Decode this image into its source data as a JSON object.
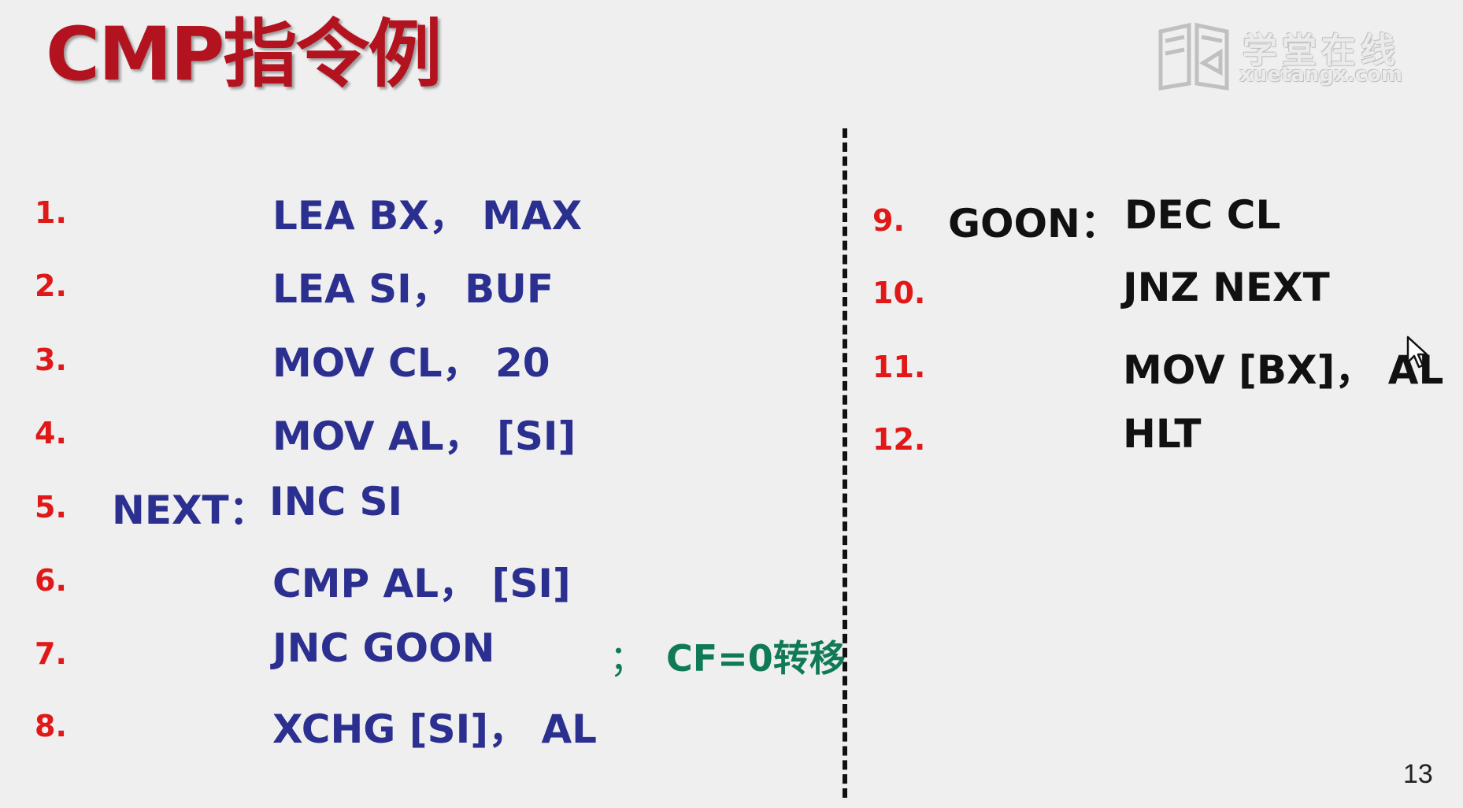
{
  "slide": {
    "title": "CMP指令例",
    "page_number": "13",
    "watermark": {
      "name": "学堂在线",
      "url": "xuetangx.com"
    }
  },
  "left_lines": [
    {
      "num": "1.",
      "label": "",
      "code": "LEA BX，  MAX"
    },
    {
      "num": "2.",
      "label": "",
      "code": "LEA SI，  BUF"
    },
    {
      "num": "3.",
      "label": "",
      "code": "MOV CL，  20"
    },
    {
      "num": "4.",
      "label": "",
      "code": "MOV AL，  [SI]"
    },
    {
      "num": "5.",
      "label": "NEXT：",
      "code": "INC   SI"
    },
    {
      "num": "6.",
      "label": "",
      "code": "CMP AL，  [SI]"
    },
    {
      "num": "7.",
      "label": "",
      "code": "JNC  GOON"
    },
    {
      "num": "8.",
      "label": "",
      "code": "XCHG  [SI]，  AL"
    }
  ],
  "line7_comment": {
    "semicolon": "；",
    "text": "CF=0转移"
  },
  "right_lines": [
    {
      "num": "9.",
      "label": "GOON：",
      "code": "DEC  CL"
    },
    {
      "num": "10.",
      "label": "",
      "code": "JNZ  NEXT"
    },
    {
      "num": "11.",
      "label": "",
      "code": "MOV [BX]，  AL"
    },
    {
      "num": "12.",
      "label": "",
      "code": "HLT"
    }
  ],
  "colors": {
    "title": "#b3121f",
    "line_numbers": "#e01818",
    "left_code": "#2b2f8f",
    "right_code": "#111111",
    "comment": "#0f7a55"
  },
  "icons": {
    "watermark_logo": "book-logo-icon",
    "cursor": "mouse-pointer-icon"
  }
}
